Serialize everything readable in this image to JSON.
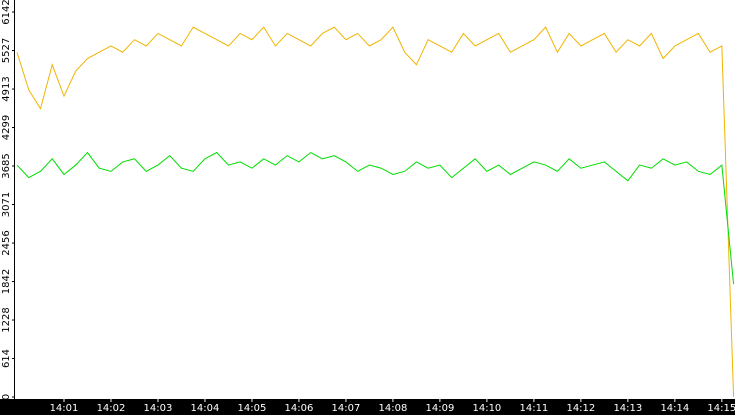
{
  "chart_data": {
    "type": "line",
    "x": [
      0,
      0.25,
      0.5,
      0.75,
      1,
      1.25,
      1.5,
      1.75,
      2,
      2.25,
      2.5,
      2.75,
      3,
      3.25,
      3.5,
      3.75,
      4,
      4.25,
      4.5,
      4.75,
      5,
      5.25,
      5.5,
      5.75,
      6,
      6.25,
      6.5,
      6.75,
      7,
      7.25,
      7.5,
      7.75,
      8,
      8.25,
      8.5,
      8.75,
      9,
      9.25,
      9.5,
      9.75,
      10,
      10.25,
      10.5,
      10.75,
      11,
      11.25,
      11.5,
      11.75,
      12,
      12.25,
      12.5,
      12.75,
      13,
      13.25,
      13.5,
      13.75,
      14,
      14.25,
      14.5,
      14.75,
      15,
      15.25
    ],
    "series": [
      {
        "color": "#f0b400",
        "values": [
          5500,
          4900,
          4600,
          5300,
          4800,
          5200,
          5400,
          5500,
          5600,
          5500,
          5700,
          5600,
          5800,
          5700,
          5600,
          5900,
          5800,
          5700,
          5600,
          5800,
          5700,
          5900,
          5600,
          5800,
          5700,
          5600,
          5800,
          5900,
          5700,
          5800,
          5600,
          5700,
          5900,
          5500,
          5300,
          5700,
          5600,
          5500,
          5800,
          5600,
          5700,
          5800,
          5500,
          5600,
          5700,
          5900,
          5500,
          5800,
          5600,
          5700,
          5800,
          5500,
          5700,
          5600,
          5800,
          5400,
          5600,
          5700,
          5800,
          5500,
          5600,
          0
        ]
      },
      {
        "color": "#00dd00",
        "values": [
          3700,
          3500,
          3600,
          3800,
          3550,
          3700,
          3900,
          3650,
          3600,
          3750,
          3800,
          3600,
          3700,
          3850,
          3650,
          3600,
          3800,
          3900,
          3700,
          3750,
          3650,
          3800,
          3700,
          3850,
          3750,
          3900,
          3800,
          3850,
          3750,
          3600,
          3700,
          3650,
          3550,
          3600,
          3750,
          3650,
          3700,
          3500,
          3650,
          3800,
          3600,
          3700,
          3550,
          3650,
          3750,
          3700,
          3600,
          3800,
          3650,
          3700,
          3750,
          3600,
          3450,
          3700,
          3650,
          3800,
          3700,
          3750,
          3600,
          3550,
          3700,
          1800
        ]
      }
    ],
    "ylim": [
      0,
      6142
    ],
    "yticks": [
      0,
      614,
      1228,
      1842,
      2456,
      3071,
      3685,
      4299,
      4913,
      5527,
      6142
    ],
    "xlim": [
      0,
      15.28
    ],
    "xticks": [
      {
        "value": 1,
        "label": "14:01"
      },
      {
        "value": 2,
        "label": "14:02"
      },
      {
        "value": 3,
        "label": "14:03"
      },
      {
        "value": 4,
        "label": "14:04"
      },
      {
        "value": 5,
        "label": "14:05"
      },
      {
        "value": 6,
        "label": "14:06"
      },
      {
        "value": 7,
        "label": "14:07"
      },
      {
        "value": 8,
        "label": "14:08"
      },
      {
        "value": 9,
        "label": "14:09"
      },
      {
        "value": 10,
        "label": "14:10"
      },
      {
        "value": 11,
        "label": "14:11"
      },
      {
        "value": 12,
        "label": "14:12"
      },
      {
        "value": 13,
        "label": "14:13"
      },
      {
        "value": 14,
        "label": "14:14"
      },
      {
        "value": 15,
        "label": "14:15"
      }
    ]
  }
}
